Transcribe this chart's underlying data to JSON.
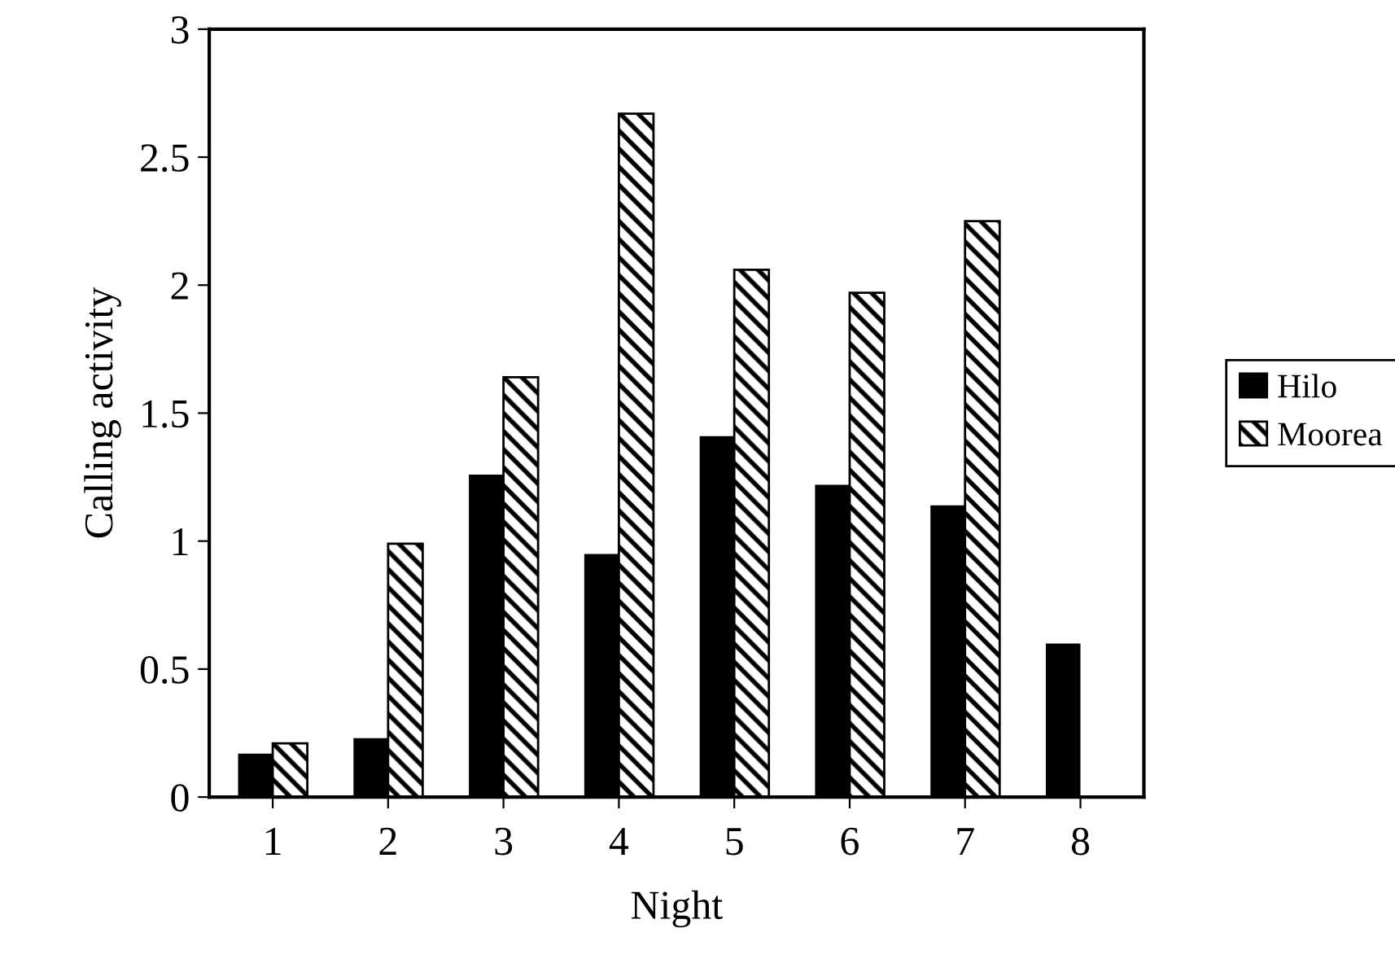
{
  "chart_data": {
    "type": "bar",
    "xlabel": "Night",
    "ylabel": "Calling activity",
    "categories": [
      "1",
      "2",
      "3",
      "4",
      "5",
      "6",
      "7",
      "8"
    ],
    "series": [
      {
        "name": "Hilo",
        "color": "#000000",
        "values": [
          0.17,
          0.23,
          1.26,
          0.95,
          1.41,
          1.22,
          1.14,
          0.6
        ]
      },
      {
        "name": "Moorea",
        "color": "#000000",
        "values": [
          0.21,
          0.99,
          1.64,
          2.67,
          2.06,
          1.97,
          2.25,
          null
        ]
      }
    ],
    "ylim": [
      0,
      3
    ],
    "yticks": [
      0,
      {
        "value": 0.5,
        "label": "0.5"
      },
      1,
      {
        "value": 1.5,
        "label": "1.5"
      },
      2,
      {
        "value": 2.5,
        "label": "2.5"
      },
      3
    ],
    "grid": false,
    "legend": "right"
  }
}
